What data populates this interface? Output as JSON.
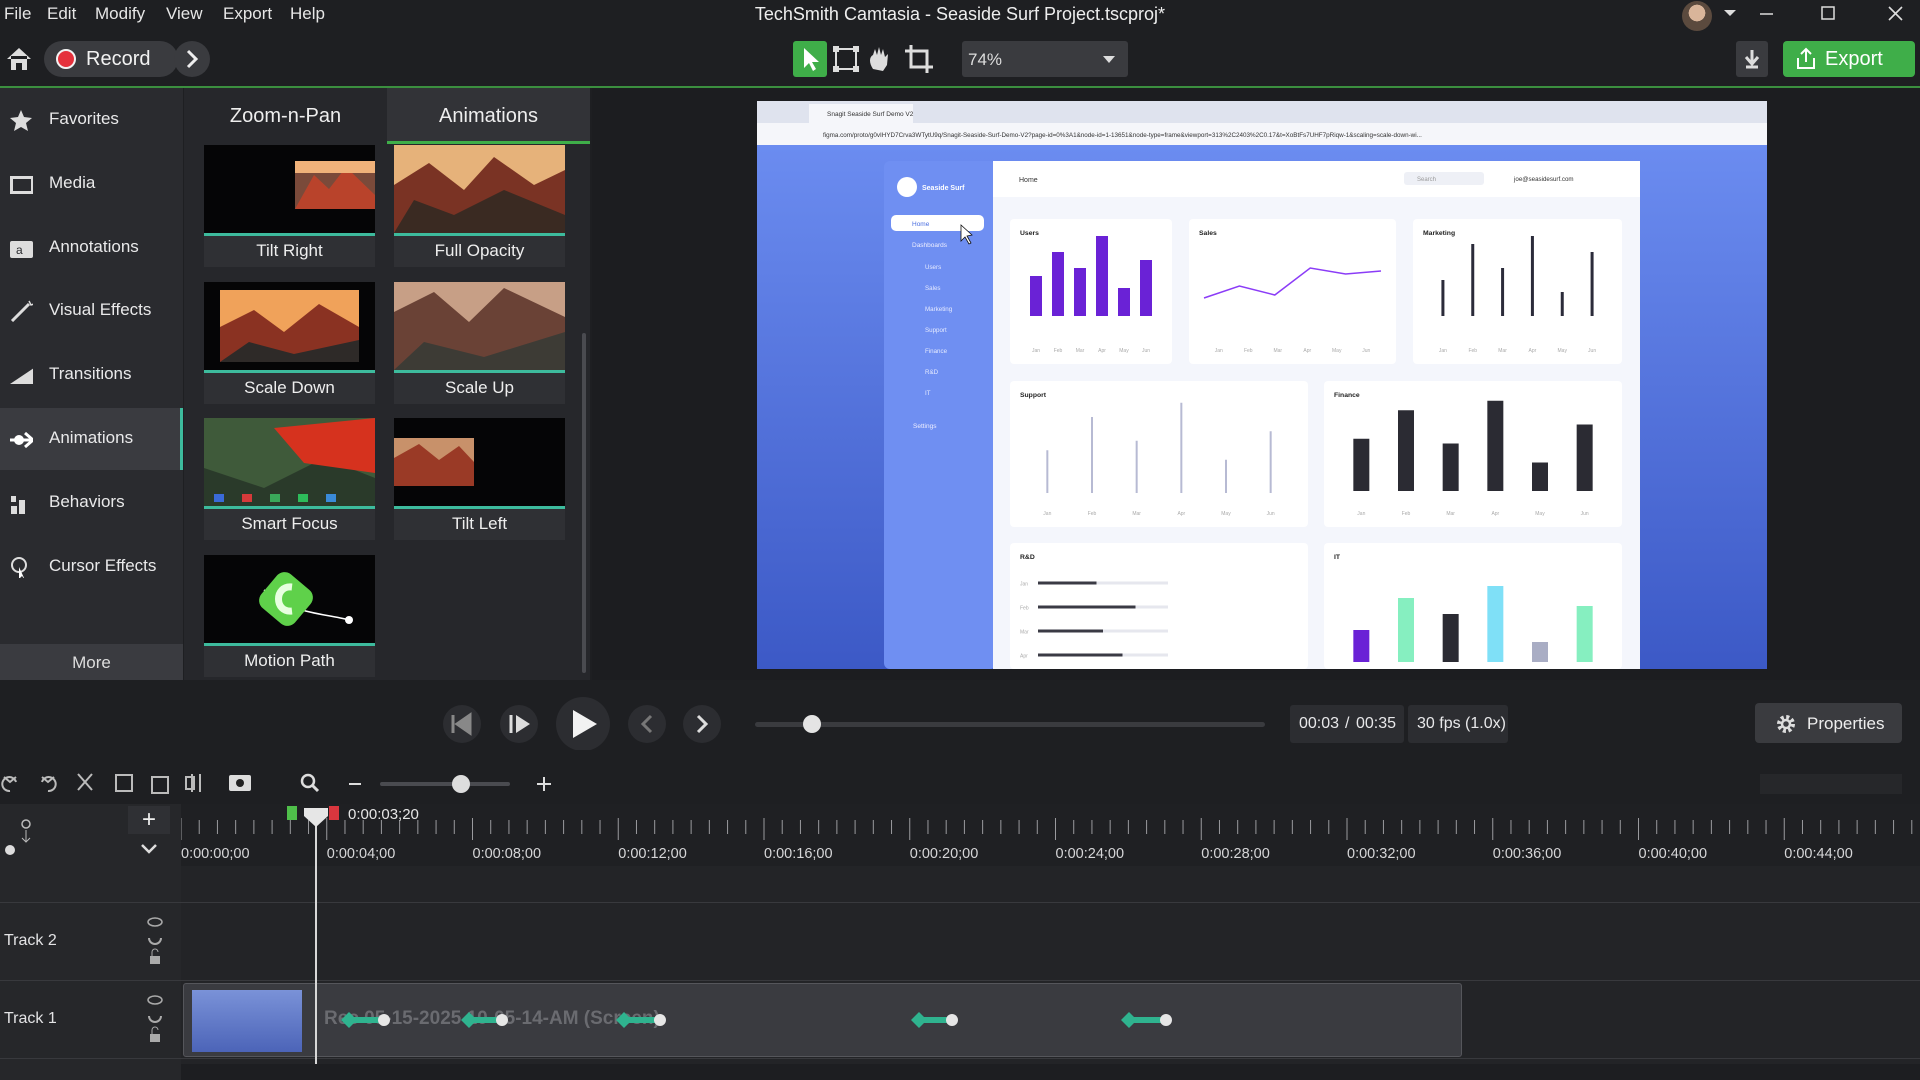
{
  "menu": [
    "File",
    "Edit",
    "Modify",
    "View",
    "Export",
    "Help"
  ],
  "window_title": "TechSmith Camtasia - Seaside Surf Project.tscproj*",
  "toolbar": {
    "record": "Record",
    "zoom": "74%",
    "export": "Export"
  },
  "sidebar": {
    "items": [
      "Favorites",
      "Media",
      "Annotations",
      "Visual Effects",
      "Transitions",
      "Animations",
      "Behaviors",
      "Cursor Effects"
    ],
    "more": "More"
  },
  "library": {
    "tabs": [
      "Zoom-n-Pan",
      "Animations"
    ],
    "items": [
      "Tilt Right",
      "Full Opacity",
      "Scale Down",
      "Scale Up",
      "Smart Focus",
      "Tilt Left",
      "Motion Path"
    ]
  },
  "preview": {
    "tab": "Snagit Seaside Surf Demo V2",
    "url": "figma.com/proto/g0vIHYD7Crva3WTytU9q/Snagit-Seaside-Surf-Demo-V2?page-id=0%3A1&node-id=1-13651&node-type=frame&viewport=313%2C2403%2C0.17&t=XoBtFs7UHF7pRiqw-1&scaling=scale-down-wi...",
    "brand": "Seaside Surf",
    "nav": {
      "home": "Home",
      "dashboards": "Dashboards",
      "sub": [
        "Users",
        "Sales",
        "Marketing",
        "Support",
        "Finance",
        "R&D",
        "IT"
      ],
      "settings": "Settings"
    },
    "header": {
      "title": "Home",
      "search": "Search",
      "user": "joe@seasidesurf.com"
    },
    "months": [
      "Jan",
      "Feb",
      "Mar",
      "Apr",
      "May",
      "Jun"
    ],
    "cards": [
      {
        "title": "Users",
        "type": "bar",
        "color": "#6a22d6",
        "values": [
          50,
          80,
          60,
          100,
          35,
          70
        ]
      },
      {
        "title": "Sales",
        "type": "line",
        "color": "#8b3cf7",
        "values": [
          25,
          45,
          30,
          75,
          65,
          70
        ]
      },
      {
        "title": "Marketing",
        "type": "bar",
        "color": "#2b2b3a",
        "values": [
          45,
          90,
          60,
          100,
          30,
          80
        ]
      },
      {
        "title": "Support",
        "type": "bar",
        "color": "#b7bad3",
        "values": [
          45,
          80,
          55,
          95,
          35,
          65
        ]
      },
      {
        "title": "Finance",
        "type": "bar",
        "color": "#2b2b33",
        "values": [
          55,
          85,
          50,
          95,
          30,
          70
        ]
      },
      {
        "title": "R&D",
        "type": "hbar",
        "color": "#3a3a44",
        "values": [
          45,
          75,
          50,
          65
        ]
      },
      {
        "title": "IT",
        "type": "bar",
        "colors": [
          "#6a22d6",
          "#86efc0",
          "#2b2b33",
          "#7fe0f7",
          "#a9adc4",
          "#86efc0"
        ],
        "values": [
          40,
          80,
          60,
          95,
          25,
          70
        ]
      }
    ]
  },
  "playback": {
    "time": "00:03",
    "separator": "/",
    "duration": "00:35",
    "fps": "30 fps (1.0x)",
    "properties": "Properties"
  },
  "timeline": {
    "playhead": "0:00:03;20",
    "ruler": [
      "0:00:00;00",
      "0:00:04;00",
      "0:00:08;00",
      "0:00:12;00",
      "0:00:16;00",
      "0:00:20;00",
      "0:00:24;00",
      "0:00:28;00",
      "0:00:32;00",
      "0:00:36;00",
      "0:00:40;00",
      "0:00:44;00"
    ],
    "tracks": [
      "Track 2",
      "Track 1"
    ],
    "clip": "Rec 05-15-2025 10-05-14-AM (Screen)"
  }
}
